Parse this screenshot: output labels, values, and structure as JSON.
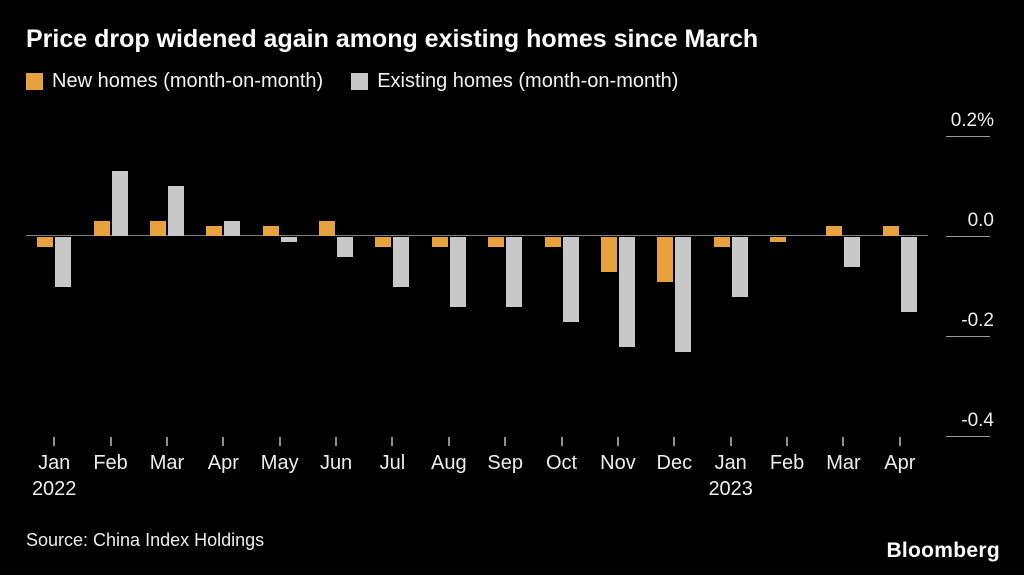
{
  "title": "Price drop widened again among existing homes since March",
  "legend": [
    {
      "label": "New homes (month-on-month)",
      "color": "#E8A23D"
    },
    {
      "label": "Existing homes (month-on-month)",
      "color": "#C8C8C8"
    }
  ],
  "source": "Source: China Index Holdings",
  "brand": "Bloomberg",
  "chart_data": {
    "type": "bar",
    "categories": [
      "Jan",
      "Feb",
      "Mar",
      "Apr",
      "May",
      "Jun",
      "Jul",
      "Aug",
      "Sep",
      "Oct",
      "Nov",
      "Dec",
      "Jan",
      "Feb",
      "Mar",
      "Apr"
    ],
    "years": [
      "2022",
      "",
      "",
      "",
      "",
      "",
      "",
      "",
      "",
      "",
      "",
      "",
      "2023",
      "",
      "",
      ""
    ],
    "series": [
      {
        "name": "New homes (month-on-month)",
        "color": "#E8A23D",
        "values": [
          -0.02,
          0.03,
          0.03,
          0.02,
          0.02,
          0.03,
          -0.02,
          -0.02,
          -0.02,
          -0.02,
          -0.07,
          -0.09,
          -0.02,
          -0.01,
          0.02,
          0.02
        ]
      },
      {
        "name": "Existing homes (month-on-month)",
        "color": "#C8C8C8",
        "values": [
          -0.1,
          0.13,
          0.1,
          0.03,
          -0.01,
          -0.04,
          -0.1,
          -0.14,
          -0.14,
          -0.17,
          -0.22,
          -0.23,
          -0.12,
          0.0,
          -0.06,
          -0.15
        ]
      }
    ],
    "y_ticks": [
      {
        "value": 0.2,
        "label": "0.2%"
      },
      {
        "value": 0.0,
        "label": "0.0"
      },
      {
        "value": -0.2,
        "label": "-0.2"
      },
      {
        "value": -0.4,
        "label": "-0.4"
      }
    ],
    "ylim": [
      -0.42,
      0.25
    ],
    "grid": false,
    "legend_position": "top",
    "baseline": 0
  }
}
